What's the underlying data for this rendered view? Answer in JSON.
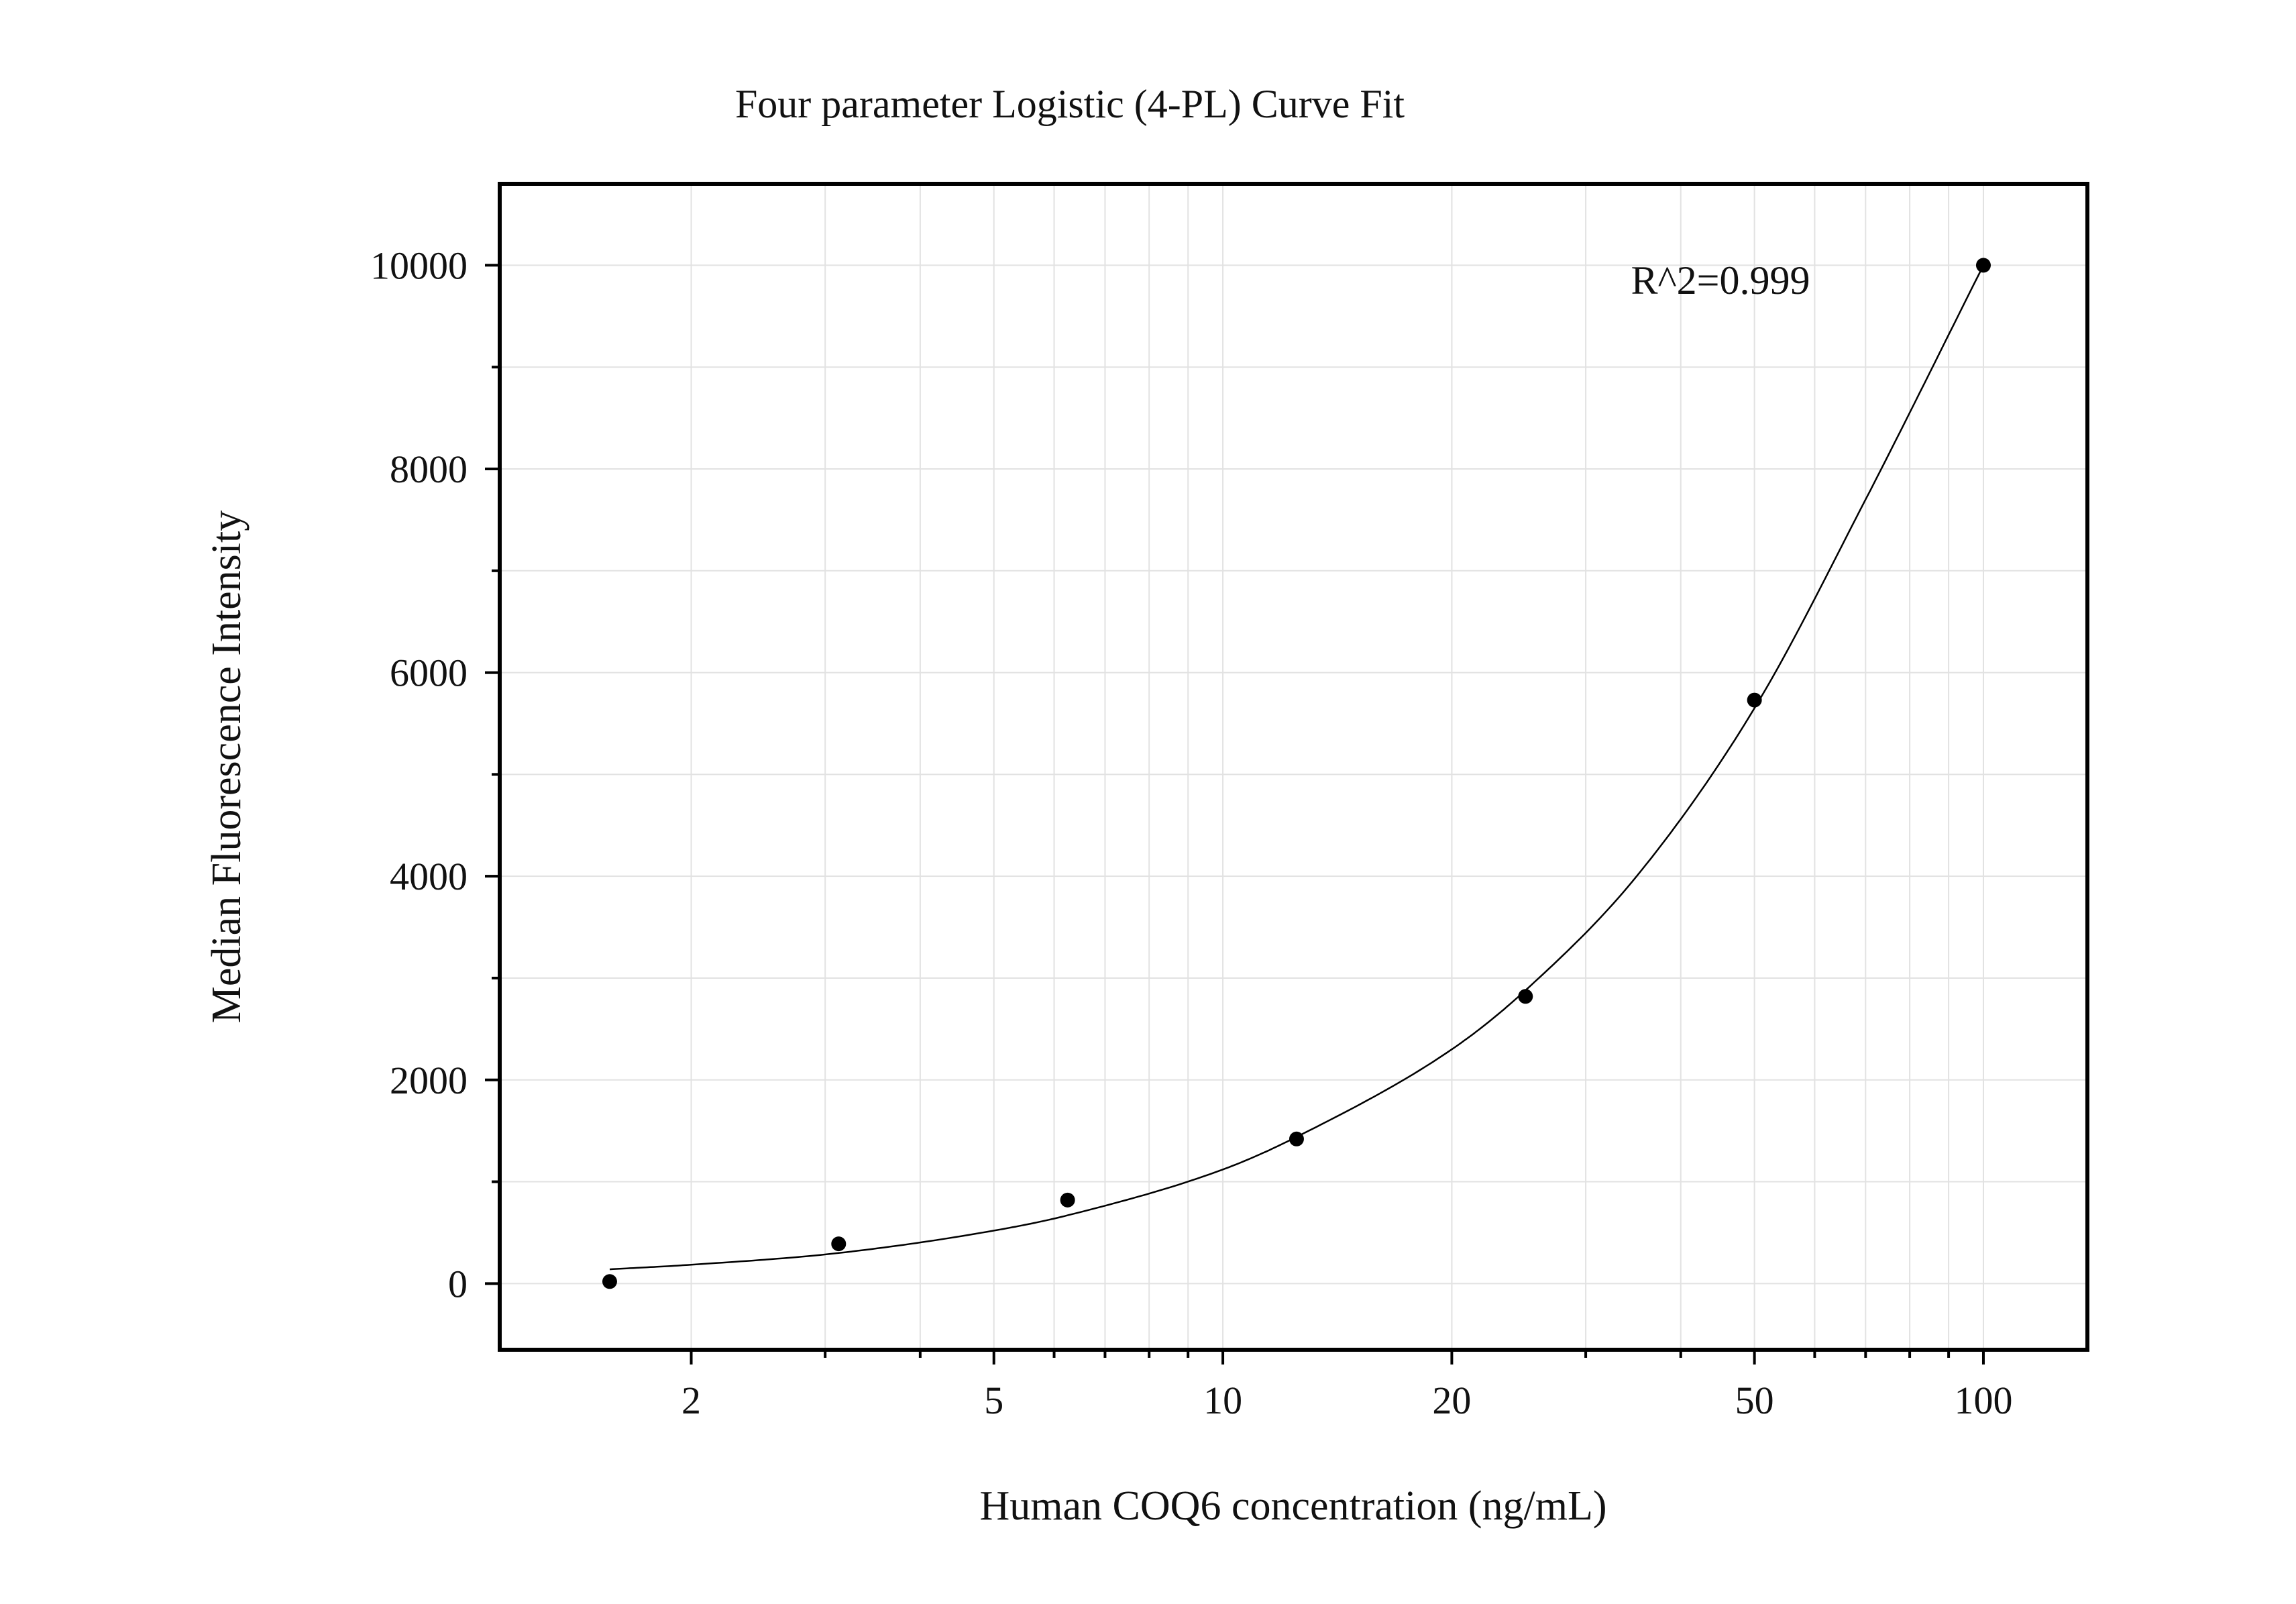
{
  "chart_data": {
    "type": "scatter",
    "title": "Four parameter Logistic (4-PL) Curve Fit",
    "xlabel": "Human COQ6 concentration (ng/mL)",
    "ylabel": "Median Fluorescence Intensity",
    "x_scale": "log",
    "xlim": [
      1.12,
      137
    ],
    "ylim": [
      -650,
      10800
    ],
    "x_ticks": [
      2,
      5,
      10,
      20,
      50,
      100
    ],
    "y_ticks": [
      0,
      2000,
      4000,
      6000,
      8000,
      10000
    ],
    "grid": true,
    "annotation": "R^2=0.999",
    "series": [
      {
        "points": [
          {
            "x": 1.5625,
            "y": 20
          },
          {
            "x": 3.125,
            "y": 390
          },
          {
            "x": 6.25,
            "y": 820
          },
          {
            "x": 12.5,
            "y": 1420
          },
          {
            "x": 25,
            "y": 2820
          },
          {
            "x": 50,
            "y": 5730
          },
          {
            "x": 100,
            "y": 10000
          }
        ]
      }
    ],
    "fit_curve": {
      "model": "4-PL",
      "points": [
        {
          "x": 1.5625,
          "y": 140
        },
        {
          "x": 2,
          "y": 185
        },
        {
          "x": 3.125,
          "y": 300
        },
        {
          "x": 5,
          "y": 520
        },
        {
          "x": 6.25,
          "y": 670
        },
        {
          "x": 10,
          "y": 1120
        },
        {
          "x": 12.5,
          "y": 1440
        },
        {
          "x": 20,
          "y": 2300
        },
        {
          "x": 25,
          "y": 2880
        },
        {
          "x": 35,
          "y": 4000
        },
        {
          "x": 50,
          "y": 5650
        },
        {
          "x": 70,
          "y": 7700
        },
        {
          "x": 100,
          "y": 10000
        }
      ]
    }
  }
}
